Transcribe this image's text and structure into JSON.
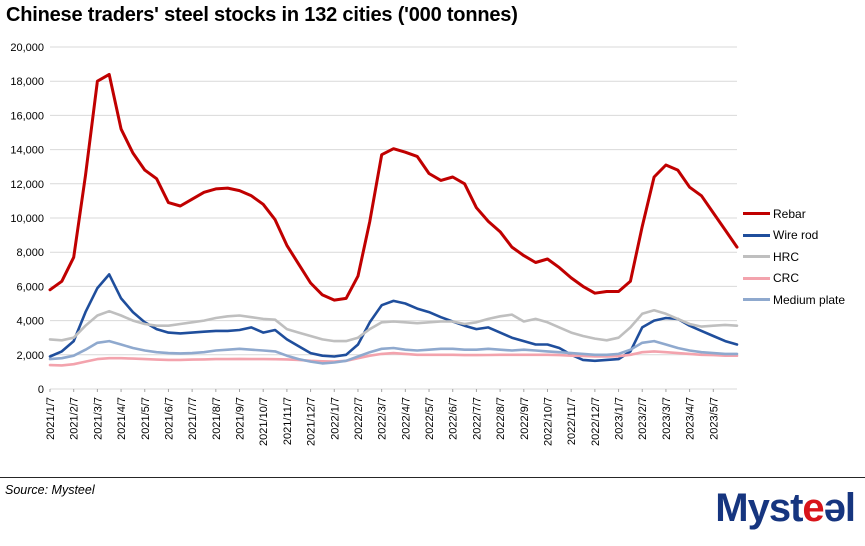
{
  "chart_data": {
    "type": "line",
    "title": "Chinese traders' steel stocks in 132 cities ('000 tonnes)",
    "xlabel": "",
    "ylabel": "",
    "ylim": [
      0,
      20000
    ],
    "y_ticks": [
      "0",
      "2,000",
      "4,000",
      "6,000",
      "8,000",
      "10,000",
      "12,000",
      "14,000",
      "16,000",
      "18,000",
      "20,000"
    ],
    "grid": "horizontal",
    "legend_position": "right",
    "x_tick_every": 2,
    "x": [
      "2021/1/7",
      "2021/1/21",
      "2021/2/7",
      "2021/2/21",
      "2021/3/7",
      "2021/3/21",
      "2021/4/7",
      "2021/4/21",
      "2021/5/7",
      "2021/5/21",
      "2021/6/7",
      "2021/6/21",
      "2021/7/7",
      "2021/7/21",
      "2021/8/7",
      "2021/8/21",
      "2021/9/7",
      "2021/9/21",
      "2021/10/7",
      "2021/10/21",
      "2021/11/7",
      "2021/11/21",
      "2021/12/7",
      "2021/12/21",
      "2022/1/7",
      "2022/1/21",
      "2022/2/7",
      "2022/2/21",
      "2022/3/7",
      "2022/3/21",
      "2022/4/7",
      "2022/4/21",
      "2022/5/7",
      "2022/5/21",
      "2022/6/7",
      "2022/6/21",
      "2022/7/7",
      "2022/7/21",
      "2022/8/7",
      "2022/8/21",
      "2022/9/7",
      "2022/9/21",
      "2022/10/7",
      "2022/10/21",
      "2022/11/7",
      "2022/11/21",
      "2022/12/7",
      "2022/12/21",
      "2023/1/7",
      "2023/1/21",
      "2023/2/7",
      "2023/2/21",
      "2023/3/7",
      "2023/3/21",
      "2023/4/7",
      "2023/4/21",
      "2023/5/7",
      "2023/5/21",
      "2023/6/2"
    ],
    "series": [
      {
        "name": "Rebar",
        "color": "#C00000",
        "values": [
          5800,
          6300,
          7700,
          12500,
          18000,
          18400,
          15200,
          13800,
          12800,
          12300,
          10900,
          10700,
          11100,
          11500,
          11700,
          11750,
          11600,
          11300,
          10800,
          9900,
          8400,
          7300,
          6200,
          5500,
          5200,
          5300,
          6600,
          9800,
          13700,
          14050,
          13850,
          13600,
          12600,
          12200,
          12400,
          12000,
          10600,
          9800,
          9200,
          8300,
          7800,
          7400,
          7600,
          7100,
          6500,
          6000,
          5600,
          5700,
          5700,
          6300,
          9500,
          12400,
          13100,
          12800,
          11800,
          11300,
          10300,
          9300,
          8300
        ]
      },
      {
        "name": "Wire rod",
        "color": "#1F4E9C",
        "values": [
          1900,
          2200,
          2800,
          4500,
          5900,
          6700,
          5300,
          4500,
          3900,
          3500,
          3300,
          3250,
          3300,
          3350,
          3400,
          3400,
          3450,
          3600,
          3300,
          3450,
          2900,
          2500,
          2100,
          1950,
          1900,
          2000,
          2600,
          3900,
          4900,
          5150,
          5000,
          4700,
          4500,
          4200,
          3950,
          3700,
          3500,
          3600,
          3300,
          3000,
          2800,
          2600,
          2600,
          2400,
          2000,
          1700,
          1650,
          1700,
          1750,
          2200,
          3600,
          4000,
          4150,
          4100,
          3700,
          3400,
          3100,
          2800,
          2600
        ]
      },
      {
        "name": "HRC",
        "color": "#BFBFBF",
        "values": [
          2900,
          2850,
          3000,
          3700,
          4300,
          4550,
          4300,
          4000,
          3800,
          3700,
          3700,
          3800,
          3900,
          4000,
          4150,
          4250,
          4300,
          4200,
          4100,
          4050,
          3500,
          3300,
          3100,
          2900,
          2800,
          2800,
          3000,
          3500,
          3900,
          3950,
          3900,
          3850,
          3900,
          3950,
          3950,
          3800,
          3900,
          4100,
          4250,
          4350,
          3950,
          4100,
          3900,
          3600,
          3300,
          3100,
          2950,
          2850,
          3000,
          3600,
          4400,
          4600,
          4400,
          4100,
          3800,
          3650,
          3700,
          3750,
          3700
        ]
      },
      {
        "name": "CRC",
        "color": "#F3A3AD",
        "values": [
          1400,
          1380,
          1450,
          1600,
          1750,
          1800,
          1800,
          1780,
          1750,
          1720,
          1700,
          1700,
          1720,
          1730,
          1750,
          1750,
          1760,
          1750,
          1750,
          1740,
          1730,
          1700,
          1650,
          1620,
          1600,
          1650,
          1800,
          1950,
          2050,
          2100,
          2050,
          2000,
          2000,
          2000,
          2000,
          1980,
          1980,
          1990,
          2000,
          2000,
          2000,
          2000,
          2000,
          1980,
          1950,
          1930,
          1900,
          1900,
          1920,
          2000,
          2150,
          2200,
          2150,
          2100,
          2050,
          2000,
          1980,
          1950,
          1950
        ]
      },
      {
        "name": "Medium plate",
        "color": "#8FA9CE",
        "values": [
          1750,
          1800,
          1950,
          2300,
          2700,
          2800,
          2600,
          2400,
          2250,
          2150,
          2100,
          2080,
          2100,
          2150,
          2250,
          2300,
          2350,
          2300,
          2250,
          2200,
          1950,
          1750,
          1600,
          1500,
          1550,
          1650,
          1900,
          2150,
          2350,
          2400,
          2300,
          2250,
          2300,
          2350,
          2350,
          2300,
          2300,
          2350,
          2300,
          2250,
          2300,
          2250,
          2200,
          2150,
          2100,
          2050,
          2000,
          2000,
          2050,
          2300,
          2700,
          2800,
          2600,
          2400,
          2250,
          2150,
          2100,
          2050,
          2050
        ]
      }
    ]
  },
  "footer": {
    "source": "Source: Mysteel",
    "logo": {
      "part1": "Myst",
      "part2": "e",
      "part3": "əl"
    }
  }
}
